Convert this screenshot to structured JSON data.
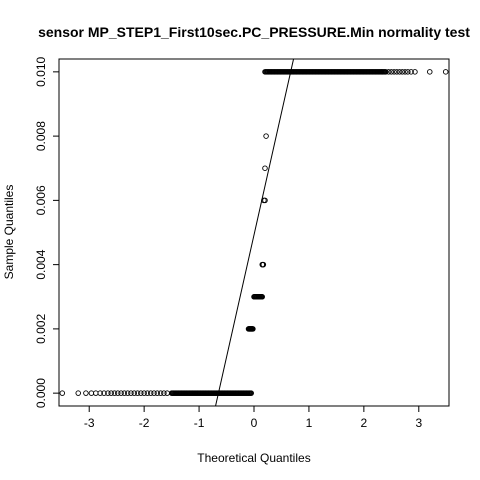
{
  "chart_data": {
    "type": "scatter",
    "title": "sensor MP_STEP1_First10sec.PC_PRESSURE.Min normality test",
    "xlabel": "Theoretical Quantiles",
    "ylabel": "Sample Quantiles",
    "xlim": [
      -3.55,
      3.55
    ],
    "ylim": [
      -0.0004,
      0.0104
    ],
    "x_ticks": [
      -3,
      -2,
      -1,
      0,
      1,
      2,
      3
    ],
    "x_tick_labels": [
      "-3",
      "-2",
      "-1",
      "0",
      "1",
      "2",
      "3"
    ],
    "y_ticks": [
      0,
      0.002,
      0.004,
      0.006,
      0.008,
      0.01
    ],
    "y_tick_labels": [
      "0.000",
      "0.002",
      "0.004",
      "0.006",
      "0.008",
      "0.010"
    ],
    "grid": false,
    "marker": "open-circle",
    "reference_line": {
      "points": [
        [
          -0.7,
          -0.0004
        ],
        [
          0.72,
          0.0104
        ]
      ]
    },
    "series": [
      {
        "groups": [
          {
            "y": 0.0,
            "x_from": -1.5,
            "x_to": -0.05,
            "count": 110,
            "extra_x": [
              -3.49,
              -3.2,
              -3.06,
              -2.96,
              -2.88,
              -2.8,
              -2.73,
              -2.66,
              -2.6,
              -2.54,
              -2.48,
              -2.42,
              -2.36,
              -2.3,
              -2.24,
              -2.18,
              -2.12,
              -2.06,
              -2.0,
              -1.94,
              -1.88,
              -1.82,
              -1.76,
              -1.7,
              -1.64,
              -1.58
            ]
          },
          {
            "y": 0.002,
            "x_from": -0.1,
            "x_to": -0.02,
            "count": 10,
            "extra_x": []
          },
          {
            "y": 0.003,
            "x_from": 0.0,
            "x_to": 0.15,
            "count": 14,
            "extra_x": []
          },
          {
            "y": 0.004,
            "x_from": 0.15,
            "x_to": 0.17,
            "count": 3,
            "extra_x": []
          },
          {
            "y": 0.006,
            "x_from": 0.18,
            "x_to": 0.2,
            "count": 2,
            "extra_x": []
          },
          {
            "y": 0.007,
            "x_from": 0.2,
            "x_to": 0.2,
            "count": 1,
            "extra_x": []
          },
          {
            "y": 0.008,
            "x_from": 0.22,
            "x_to": 0.22,
            "count": 1,
            "extra_x": []
          },
          {
            "y": 0.01,
            "x_from": 0.2,
            "x_to": 2.4,
            "count": 160,
            "extra_x": [
              2.45,
              2.5,
              2.55,
              2.6,
              2.65,
              2.7,
              2.75,
              2.8,
              2.86,
              2.93,
              3.2,
              3.49
            ]
          }
        ]
      }
    ]
  }
}
